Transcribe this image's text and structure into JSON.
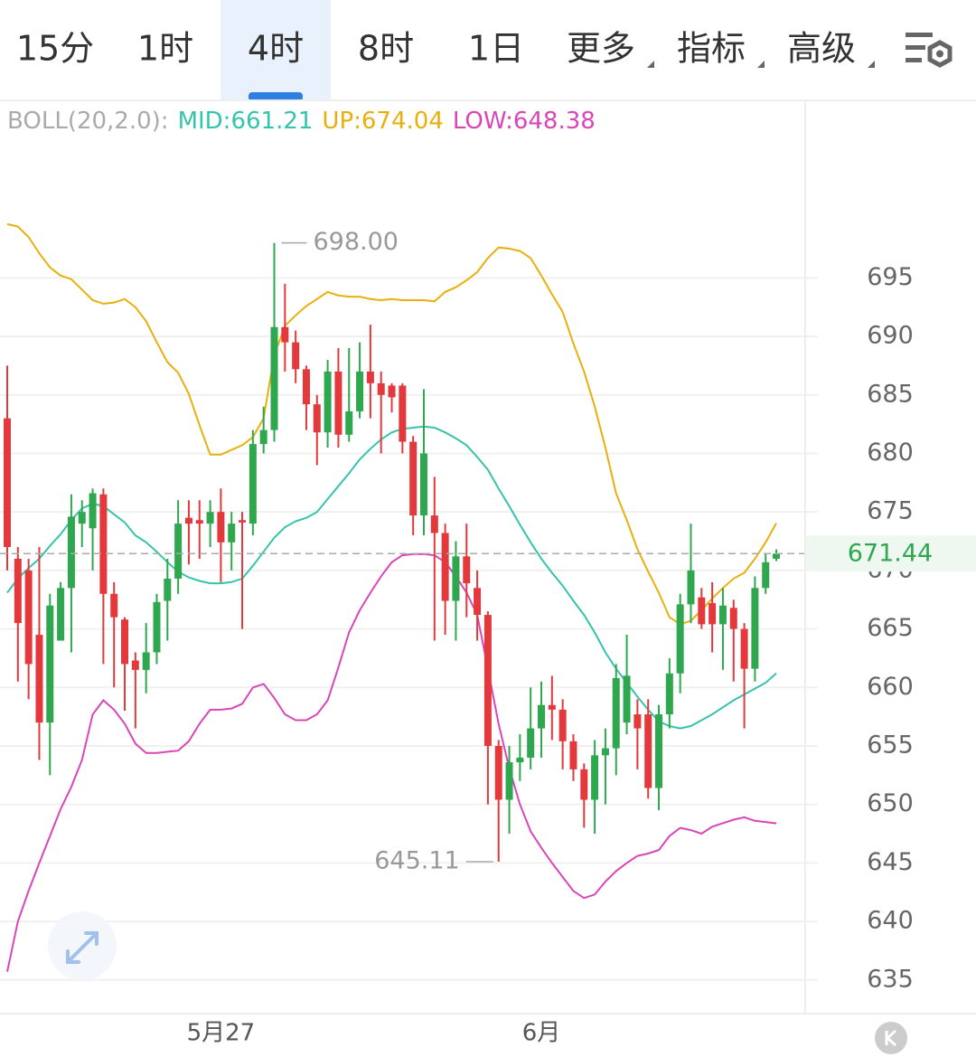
{
  "chart_data": {
    "type": "candlestick",
    "tabs": [
      "15分",
      "1时",
      "4时",
      "8时",
      "1日",
      "更多",
      "指标",
      "高级"
    ],
    "selected_tab": "4时",
    "indicator": "BOLL(20,2.0):",
    "categories": [
      null,
      null,
      null,
      null,
      null,
      null,
      null,
      null,
      null,
      null,
      null,
      null,
      null,
      null,
      null,
      null,
      null,
      null,
      null,
      null,
      "5月27",
      null,
      null,
      null,
      null,
      null,
      null,
      null,
      null,
      null,
      null,
      null,
      null,
      null,
      null,
      null,
      null,
      null,
      null,
      null,
      null,
      null,
      null,
      null,
      null,
      null,
      null,
      null,
      null,
      null,
      "6月",
      null,
      null,
      null,
      null,
      null,
      null,
      null,
      null,
      null,
      null,
      null,
      null,
      null,
      null,
      null,
      null,
      null,
      null,
      null,
      null,
      null,
      null
    ],
    "open": [
      683,
      671,
      670,
      664.5,
      657,
      664,
      668.5,
      674,
      673.6,
      676.5,
      668,
      665.8,
      662.3,
      661.5,
      663,
      667.4,
      669.3,
      674.5,
      674.3,
      674,
      675,
      672.4,
      674.3,
      674,
      680.8,
      682,
      690.8,
      689.5,
      687.2,
      684.2,
      681.8,
      687,
      681.6,
      683.6,
      687,
      686,
      685.8,
      685.8,
      681,
      674.7,
      674.7,
      673.2,
      667.4,
      671.2,
      668.5,
      666.2,
      655,
      650.4,
      653.6,
      654,
      656.5,
      658.5,
      658.1,
      655.4,
      653,
      650.4,
      654.2,
      654.8,
      657,
      657.7,
      657.7,
      651.4,
      657.7,
      661.2,
      667.1,
      667.7,
      667.2,
      665.4,
      666.8,
      665,
      661.6,
      668.5,
      671.0
    ],
    "high": [
      687.5,
      672,
      671,
      672,
      668,
      669,
      676.5,
      676,
      677,
      677,
      669,
      666,
      663,
      665.5,
      668,
      671,
      676,
      676,
      676,
      676,
      677,
      675,
      675,
      682,
      684,
      698,
      694.5,
      690.5,
      687.5,
      685,
      688,
      689,
      689,
      689.5,
      691,
      687,
      686,
      686,
      681.5,
      685.5,
      678,
      674,
      672.5,
      674,
      670,
      666.5,
      655.5,
      655,
      656,
      660,
      660.5,
      661,
      659,
      656,
      653.5,
      655.5,
      656.5,
      662,
      664.5,
      659,
      659,
      658.5,
      662.5,
      668,
      674,
      668.5,
      669,
      668.5,
      667.5,
      665.5,
      669.5,
      671.5,
      671.8
    ],
    "low": [
      670,
      660.5,
      659,
      653.8,
      652.5,
      664,
      663,
      672,
      670,
      662,
      660,
      658,
      656.5,
      659.5,
      662,
      664,
      668,
      670.5,
      671,
      672,
      669,
      670,
      665,
      673,
      680,
      681,
      687,
      686,
      682,
      679,
      680.5,
      680.5,
      681,
      683,
      683,
      680,
      683.5,
      680,
      673,
      673,
      664,
      664.5,
      664,
      666,
      664,
      650,
      645.11,
      647.5,
      652,
      653,
      654,
      655.5,
      653,
      652,
      648,
      647.5,
      650,
      652.5,
      656,
      653,
      650.5,
      649.5,
      656.5,
      659.5,
      665.5,
      665,
      663,
      661.5,
      660.5,
      656.5,
      660.5,
      668,
      670.8
    ],
    "close": [
      672,
      665.5,
      662,
      657,
      667,
      668.5,
      674.6,
      675,
      676.6,
      668,
      666,
      662,
      661.5,
      663,
      667.3,
      669.3,
      674,
      674,
      674,
      675,
      672.4,
      674,
      674.1,
      680.8,
      682,
      690.8,
      689.5,
      687.2,
      684.2,
      681.8,
      687,
      681.6,
      683.6,
      687,
      686,
      685,
      684.8,
      681,
      674.7,
      680,
      673.2,
      667.4,
      671.2,
      668.9,
      666.2,
      655,
      650.4,
      653.6,
      654,
      656.5,
      658.5,
      658.1,
      655.4,
      653,
      650.4,
      654.2,
      654.8,
      660.8,
      661,
      656.5,
      651.4,
      657.7,
      661.2,
      667.1,
      670,
      665.4,
      665.4,
      667,
      665,
      661.6,
      668.5,
      670.7,
      671.44
    ],
    "up_color": "#2ea74f",
    "down_color": "#e4393c",
    "overlays": [
      {
        "label": "MID:661.21",
        "color": "#35c3ad",
        "values": [
          668.1,
          669.3,
          670.2,
          671.0,
          672.1,
          673.1,
          674.3,
          675.3,
          675.7,
          675.5,
          674.8,
          674.1,
          673.0,
          672.4,
          671.6,
          670.7,
          669.9,
          669.4,
          669.1,
          668.9,
          668.9,
          669.0,
          669.3,
          670.4,
          671.6,
          672.8,
          673.7,
          674.2,
          674.5,
          675.0,
          676.1,
          677.2,
          678.3,
          679.5,
          680.4,
          681.2,
          681.8,
          682.1,
          682.2,
          682.3,
          682.2,
          681.8,
          681.3,
          680.7,
          679.7,
          678.6,
          677.0,
          675.5,
          673.9,
          672.4,
          671.0,
          669.8,
          668.7,
          667.4,
          666.2,
          664.7,
          663.0,
          661.6,
          660.4,
          659.2,
          658.1,
          657.1,
          656.7,
          656.5,
          656.7,
          657.2,
          657.7,
          658.3,
          658.9,
          659.4,
          659.9,
          660.4,
          661.21
        ]
      },
      {
        "label": "UP:674.04",
        "color": "#e8b00c",
        "values": [
          699.6,
          699.4,
          698.5,
          697.1,
          695.9,
          695.2,
          694.9,
          694.0,
          693.1,
          692.8,
          692.9,
          693.2,
          692.5,
          691.3,
          689.5,
          687.8,
          686.9,
          685.1,
          682.4,
          679.9,
          679.9,
          680.3,
          680.7,
          681.4,
          683.0,
          688.4,
          690.9,
          691.8,
          692.6,
          693.2,
          693.8,
          693.5,
          693.4,
          693.4,
          693.2,
          693.1,
          693.2,
          693.1,
          693.1,
          693.1,
          693.0,
          693.8,
          694.2,
          694.8,
          695.5,
          696.7,
          697.6,
          697.5,
          697.3,
          696.7,
          695.2,
          693.6,
          692.1,
          689.4,
          687.0,
          684.0,
          680.5,
          676.6,
          674.3,
          671.8,
          669.9,
          668.1,
          666.0,
          665.4,
          665.7,
          666.6,
          667.6,
          668.5,
          669.3,
          669.8,
          671.0,
          672.4,
          674.04
        ]
      },
      {
        "label": "LOW:648.38",
        "color": "#d946b7",
        "values": [
          635.7,
          640.0,
          642.6,
          645.0,
          647.3,
          649.6,
          651.5,
          653.8,
          657.7,
          658.9,
          658.1,
          656.9,
          655.2,
          654.4,
          654.4,
          654.5,
          654.6,
          655.4,
          656.9,
          658.1,
          658.1,
          658.2,
          658.6,
          660.0,
          660.3,
          659.1,
          657.7,
          657.2,
          657.2,
          657.7,
          658.9,
          661.7,
          664.7,
          666.6,
          668.1,
          669.5,
          670.7,
          671.3,
          671.4,
          671.4,
          671.3,
          670.7,
          669.5,
          668.1,
          666.2,
          661.6,
          656.9,
          653.1,
          650.0,
          647.7,
          646.3,
          645.0,
          643.8,
          642.6,
          642.0,
          642.3,
          643.4,
          644.3,
          645.0,
          645.6,
          645.8,
          646.1,
          647.3,
          648.0,
          647.8,
          647.5,
          648.1,
          648.4,
          648.7,
          648.9,
          648.6,
          648.5,
          648.38
        ]
      }
    ],
    "last_price": 671.44,
    "max_annotation": {
      "value": 698,
      "label": "698.00"
    },
    "min_annotation": {
      "value": 645.11,
      "label": "645.11"
    },
    "ylim": [
      632.2,
      710.1
    ],
    "yticks": [
      635,
      640,
      645,
      650,
      655,
      660,
      665,
      670,
      675,
      680,
      685,
      690,
      695
    ],
    "grid": true
  }
}
